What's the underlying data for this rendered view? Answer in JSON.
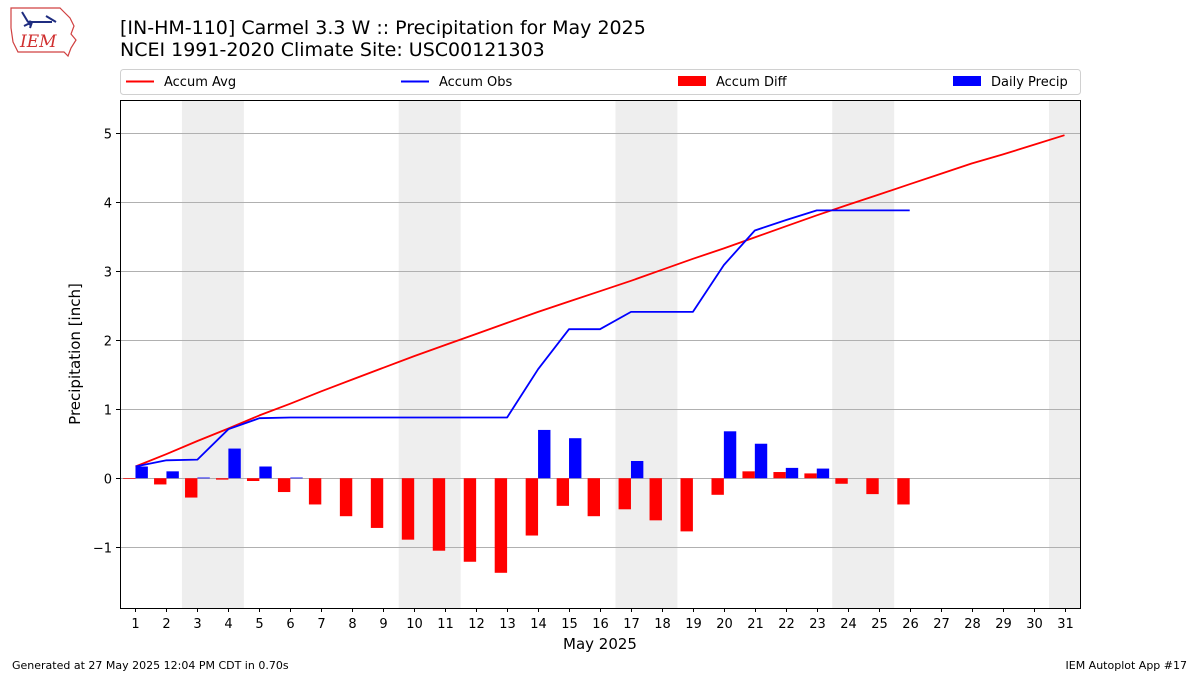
{
  "header": {
    "title": "[IN-HM-110] Carmel 3.3 W :: Precipitation for May 2025",
    "subtitle": "NCEI 1991-2020 Climate Site: USC00121303",
    "logo_text": "IEM"
  },
  "footer": {
    "generated": "Generated at 27 May 2025 12:04 PM CDT in 0.70s",
    "app": "IEM Autoplot App #17"
  },
  "colors": {
    "accum_avg": "#ff0000",
    "accum_obs": "#0000ff",
    "accum_diff": "#ff0000",
    "daily_precip": "#0000ff",
    "weekend_band": "#eeeeee",
    "grid": "#b0b0b0"
  },
  "chart_data": {
    "type": "bar",
    "title": "[IN-HM-110] Carmel 3.3 W :: Precipitation for May 2025",
    "xlabel": "May 2025",
    "ylabel": "Precipitation [inch]",
    "xlim": [
      0.5,
      31.5
    ],
    "ylim": [
      -1.88,
      5.48
    ],
    "yticks": [
      -1,
      0,
      1,
      2,
      3,
      4,
      5
    ],
    "ytick_labels": [
      "−1",
      "0",
      "1",
      "2",
      "3",
      "4",
      "5"
    ],
    "categories": [
      "1",
      "2",
      "3",
      "4",
      "5",
      "6",
      "7",
      "8",
      "9",
      "10",
      "11",
      "12",
      "13",
      "14",
      "15",
      "16",
      "17",
      "18",
      "19",
      "20",
      "21",
      "22",
      "23",
      "24",
      "25",
      "26",
      "27",
      "28",
      "29",
      "30",
      "31"
    ],
    "grid": "horizontal",
    "legend_placement": "top",
    "weekend_bands": [
      [
        3,
        4
      ],
      [
        10,
        11
      ],
      [
        17,
        18
      ],
      [
        24,
        25
      ],
      [
        31,
        31
      ]
    ],
    "series": [
      {
        "name": "Accum Avg",
        "kind": "line",
        "x": [
          1,
          2,
          3,
          4,
          5,
          6,
          7,
          8,
          9,
          10,
          11,
          12,
          13,
          14,
          15,
          16,
          17,
          18,
          19,
          20,
          21,
          22,
          23,
          24,
          25,
          26,
          27,
          28,
          29,
          30,
          31
        ],
        "values": [
          0.17,
          0.35,
          0.54,
          0.72,
          0.91,
          1.08,
          1.26,
          1.43,
          1.6,
          1.77,
          1.93,
          2.09,
          2.25,
          2.41,
          2.56,
          2.71,
          2.86,
          3.02,
          3.18,
          3.33,
          3.49,
          3.65,
          3.81,
          3.96,
          4.11,
          4.26,
          4.41,
          4.56,
          4.69,
          4.83,
          4.97
        ]
      },
      {
        "name": "Accum Obs",
        "kind": "line",
        "x": [
          1,
          2,
          3,
          4,
          5,
          6,
          7,
          8,
          9,
          10,
          11,
          12,
          13,
          14,
          15,
          16,
          17,
          18,
          19,
          20,
          21,
          22,
          23,
          24,
          25,
          26
        ],
        "values": [
          0.17,
          0.26,
          0.27,
          0.71,
          0.87,
          0.88,
          0.88,
          0.88,
          0.88,
          0.88,
          0.88,
          0.88,
          0.88,
          1.58,
          2.16,
          2.16,
          2.41,
          2.41,
          2.41,
          3.09,
          3.59,
          3.74,
          3.88,
          3.88,
          3.88,
          3.88
        ]
      },
      {
        "name": "Accum Diff",
        "kind": "bar",
        "x": [
          1,
          2,
          3,
          4,
          5,
          6,
          7,
          8,
          9,
          10,
          11,
          12,
          13,
          14,
          15,
          16,
          17,
          18,
          19,
          20,
          21,
          22,
          23,
          24,
          25,
          26
        ],
        "values": [
          -0.01,
          -0.09,
          -0.28,
          -0.02,
          -0.04,
          -0.2,
          -0.38,
          -0.55,
          -0.72,
          -0.89,
          -1.05,
          -1.21,
          -1.37,
          -0.83,
          -0.4,
          -0.55,
          -0.45,
          -0.61,
          -0.77,
          -0.24,
          0.1,
          0.09,
          0.07,
          -0.08,
          -0.23,
          -0.38
        ]
      },
      {
        "name": "Daily Precip",
        "kind": "bar",
        "x": [
          1,
          2,
          3,
          4,
          5,
          6,
          7,
          8,
          9,
          10,
          11,
          12,
          13,
          14,
          15,
          16,
          17,
          18,
          19,
          20,
          21,
          22,
          23,
          24,
          25,
          26
        ],
        "values": [
          0.17,
          0.1,
          0.01,
          0.43,
          0.17,
          0.01,
          0,
          0,
          0,
          0,
          0,
          0,
          0,
          0.7,
          0.58,
          0,
          0.25,
          0,
          0,
          0.68,
          0.5,
          0.15,
          0.14,
          0,
          0,
          0
        ]
      }
    ]
  }
}
